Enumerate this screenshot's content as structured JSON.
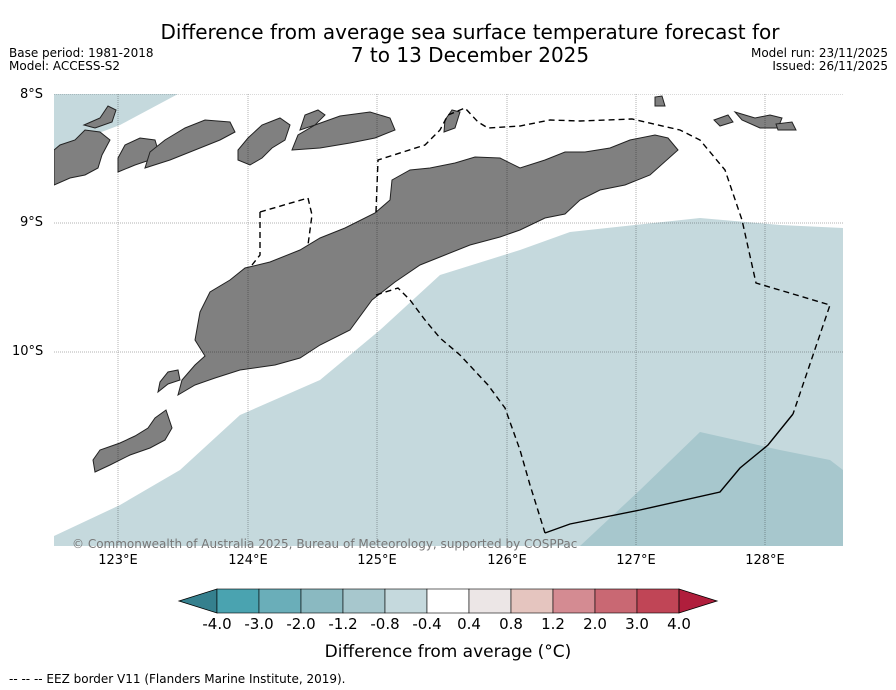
{
  "title": {
    "line1": "Difference from average sea surface temperature forecast for",
    "line2": "7 to 13 December 2025"
  },
  "meta": {
    "base_period": "Base period: 1981-2018",
    "model": "Model: ACCESS-S2",
    "model_run": "Model run: 23/11/2025",
    "issued": "Issued: 26/11/2025"
  },
  "map": {
    "lat_labels": [
      "8°S",
      "9°S",
      "10°S"
    ],
    "lon_labels": [
      "123°E",
      "124°E",
      "125°E",
      "126°E",
      "127°E",
      "128°E"
    ],
    "copyright": "© Commonwealth of Australia 2025, Bureau of Meteorology, supported by COSPPac",
    "colors": {
      "land": "#808080",
      "anomaly_light": "#c5d9dd",
      "anomaly_medium": "#a7c7cd",
      "sea_neutral": "#ffffff"
    }
  },
  "colorbar": {
    "ticks": [
      "-4.0",
      "-3.0",
      "-2.0",
      "-1.2",
      "-0.8",
      "-0.4",
      "0.4",
      "0.8",
      "1.2",
      "2.0",
      "3.0",
      "4.0"
    ],
    "colors": [
      "#4aa3b0",
      "#6aaeb9",
      "#8ab9c1",
      "#a7c7cd",
      "#c5d9dd",
      "#ffffff",
      "#ece6e6",
      "#e5c5bf",
      "#d48b92",
      "#c96873",
      "#c04556"
    ],
    "under_color": "#35808e",
    "over_color": "#b01e3c",
    "label": "Difference from average (°C)"
  },
  "legend": {
    "eez_note": "--  --  -- EEZ border V11 (Flanders Marine Institute, 2019)."
  }
}
